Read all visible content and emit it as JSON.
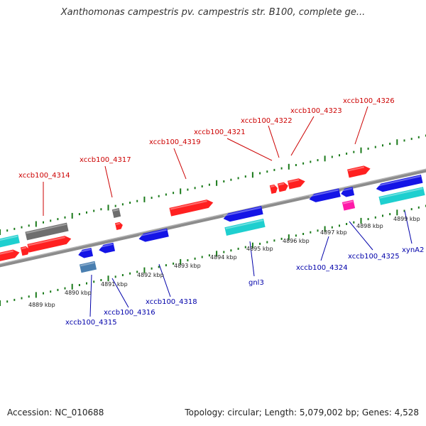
{
  "title": "Xanthomonas campestris pv. campestris str. B100, complete ge...",
  "footer": {
    "accession": "Accession: NC_010688",
    "summary": "Topology: circular; Length: 5,079,002 bp; Genes: 4,528"
  },
  "colors": {
    "top_label": "#cc0000",
    "bottom_label": "#0000aa",
    "tick": "#1a7a1a",
    "backbone": "#8c8c8c",
    "red": "#ff2020",
    "blue": "#1414e6",
    "cyan": "#1ecfcf",
    "gray": "#6e6e6e",
    "steel": "#4a7fb0",
    "magenta": "#ff1aa8"
  },
  "kbp_labels": [
    "4889 kbp",
    "4890 kbp",
    "4891 kbp",
    "4892 kbp",
    "4893 kbp",
    "4894 kbp",
    "4895 kbp",
    "4896 kbp",
    "4897 kbp",
    "4898 kbp",
    "4899 kbp"
  ],
  "top_gene_labels": [
    "xccb100_4314",
    "xccb100_4317",
    "xccb100_4319",
    "xccb100_4321",
    "xccb100_4322",
    "xccb100_4323",
    "xccb100_4326"
  ],
  "bottom_gene_labels": [
    "xccb100_4315",
    "xccb100_4316",
    "xccb100_4318",
    "gnl3",
    "xccb100_4324",
    "xccb100_4325",
    "xynA2"
  ]
}
